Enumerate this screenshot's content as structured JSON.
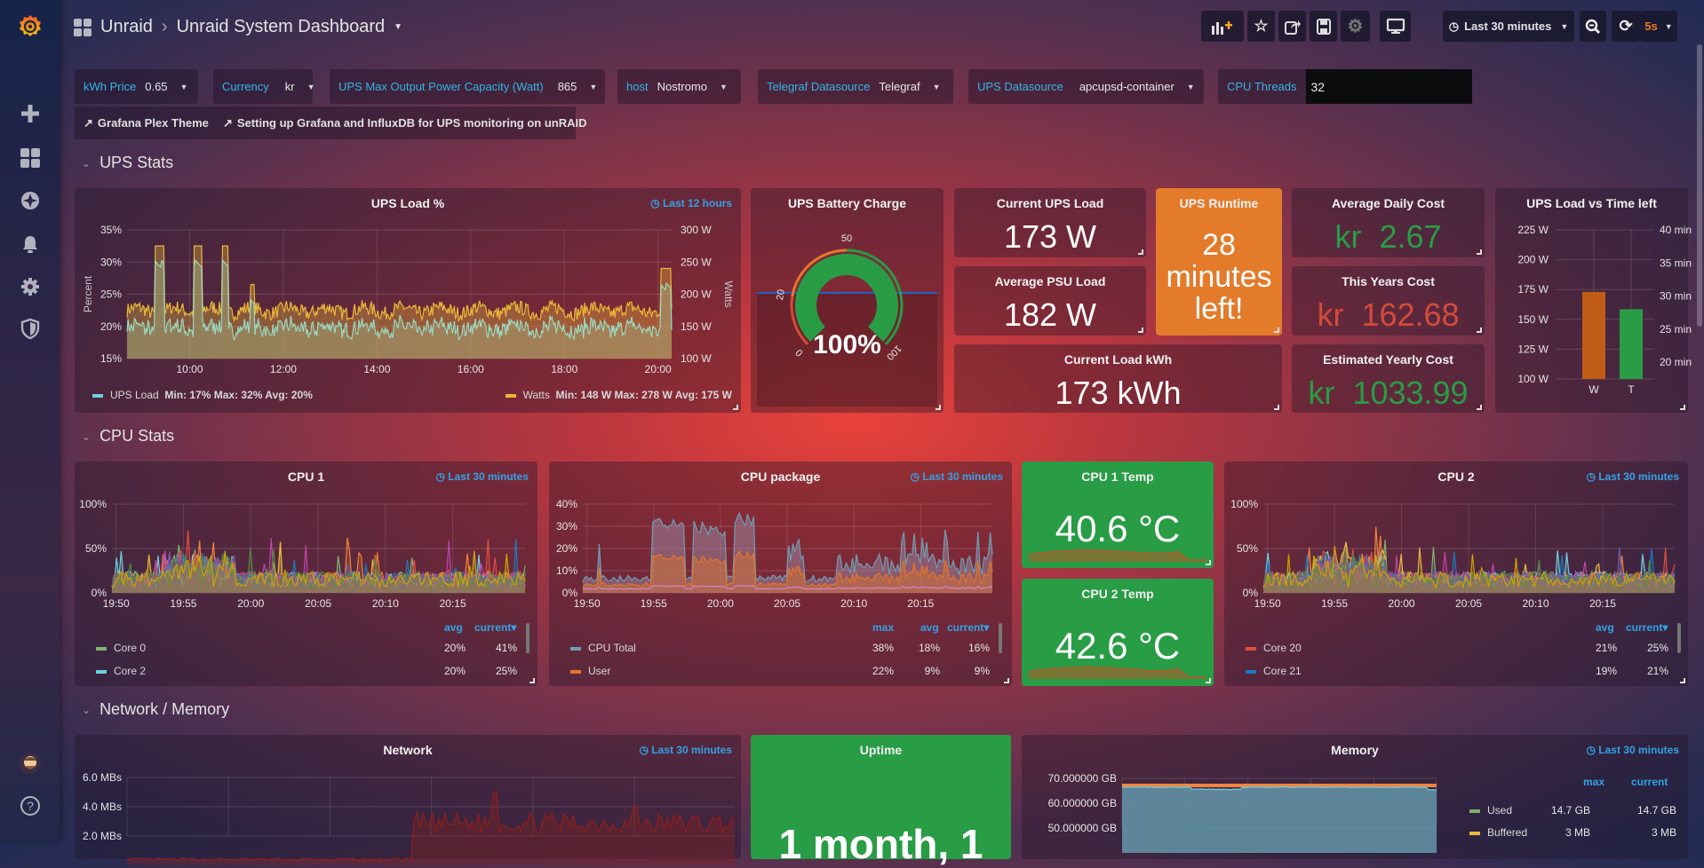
{
  "header": {
    "folder": "Unraid",
    "separator": "›",
    "title": "Unraid System Dashboard",
    "time_range": "Last 30 minutes",
    "refresh_interval": "5s"
  },
  "sidebar": {
    "items": [
      "grafana-logo",
      "create",
      "dashboards",
      "explore",
      "alerting",
      "configuration",
      "server-admin",
      "profile",
      "help"
    ]
  },
  "variables": [
    {
      "label": "kWh Price",
      "value": "0.65"
    },
    {
      "label": "Currency",
      "value": "kr"
    },
    {
      "label": "UPS Max Output Power Capacity (Watt)",
      "value": "865"
    },
    {
      "label": "host",
      "value": "Nostromo"
    },
    {
      "label": "Telegraf Datasource",
      "value": "Telegraf"
    },
    {
      "label": "UPS Datasource",
      "value": "apcupsd-container"
    },
    {
      "label": "CPU Threads",
      "value": "32"
    }
  ],
  "links": [
    "Grafana Plex Theme",
    "Setting up Grafana and InfluxDB for UPS monitoring on unRAID"
  ],
  "rows": {
    "ups": "UPS Stats",
    "cpu": "CPU Stats",
    "net": "Network / Memory"
  },
  "ups_load": {
    "title": "UPS Load %",
    "time_override": "Last 12 hours",
    "left_axis_label": "Percent",
    "right_axis_label": "Watts",
    "left_ticks": [
      "35%",
      "30%",
      "25%",
      "20%",
      "15%"
    ],
    "right_ticks": [
      "300 W",
      "250 W",
      "200 W",
      "150 W",
      "100 W"
    ],
    "x_ticks": [
      "10:00",
      "12:00",
      "14:00",
      "16:00",
      "18:00",
      "20:00"
    ],
    "legend": [
      {
        "name": "UPS Load",
        "color": "#6ed0e0",
        "stats": "Min: 17%  Max: 32%  Avg: 20%"
      },
      {
        "name": "Watts",
        "color": "#eab839",
        "stats": "Min: 148 W  Max: 278 W  Avg: 175 W"
      }
    ]
  },
  "battery": {
    "title": "UPS Battery Charge",
    "value": "100%",
    "percent": 100,
    "thresholds": [
      "0",
      "20",
      "50",
      "100"
    ],
    "colors": {
      "low": "#d44a3a",
      "mid": "#e5772c",
      "ok": "#299c46"
    }
  },
  "stats": {
    "current_load": {
      "title": "Current UPS Load",
      "value": "173 W"
    },
    "avg_psu": {
      "title": "Average PSU Load",
      "value": "182 W"
    },
    "current_kwh": {
      "title": "Current Load kWh",
      "value": "173 kWh"
    },
    "runtime": {
      "title": "UPS Runtime",
      "line1": "28",
      "line2": "minutes",
      "line3": "left!",
      "color": "#e37b2b"
    },
    "daily_cost": {
      "title": "Average Daily Cost",
      "prefix": "kr",
      "value": "2.67",
      "color": "#299c46"
    },
    "year_cost": {
      "title": "This Years Cost",
      "prefix": "kr",
      "value": "162.68",
      "color": "#d44a3a"
    },
    "yearly_cost": {
      "title": "Estimated Yearly Cost",
      "prefix": "kr",
      "value": "1033.99",
      "color": "#299c46"
    }
  },
  "load_vs_time": {
    "title": "UPS Load vs Time left",
    "left_ticks": [
      "225 W",
      "200 W",
      "175 W",
      "150 W",
      "125 W",
      "100 W"
    ],
    "right_ticks": [
      "40 min",
      "35 min",
      "30 min",
      "25 min",
      "20 min"
    ],
    "categories": [
      "W",
      "T"
    ],
    "values": {
      "W": 173,
      "T": 28
    },
    "colors": {
      "W": "#c15c17",
      "T": "#299c46"
    }
  },
  "cpu1": {
    "title": "CPU 1",
    "time_override": "Last 30 minutes",
    "y_ticks": [
      "100%",
      "50%",
      "0%"
    ],
    "x_ticks": [
      "19:50",
      "19:55",
      "20:00",
      "20:05",
      "20:10",
      "20:15"
    ],
    "legend_headers": [
      "avg",
      "current"
    ],
    "legend": [
      {
        "name": "Core 0",
        "color": "#7eb26d",
        "avg": "20%",
        "current": "41%"
      },
      {
        "name": "Core 2",
        "color": "#6ed0e0",
        "avg": "20%",
        "current": "25%"
      }
    ]
  },
  "cpu_pkg": {
    "title": "CPU package",
    "time_override": "Last 30 minutes",
    "y_ticks": [
      "40%",
      "30%",
      "20%",
      "10%",
      "0%"
    ],
    "x_ticks": [
      "19:50",
      "19:55",
      "20:00",
      "20:05",
      "20:10",
      "20:15"
    ],
    "legend_headers": [
      "max",
      "avg",
      "current"
    ],
    "legend": [
      {
        "name": "CPU Total",
        "color": "#6d9eb5",
        "max": "38%",
        "avg": "18%",
        "current": "16%"
      },
      {
        "name": "User",
        "color": "#e0752d",
        "max": "22%",
        "avg": "9%",
        "current": "9%"
      }
    ]
  },
  "cpu1_temp": {
    "title": "CPU 1 Temp",
    "value": "40.6 °C",
    "color": "#299c46"
  },
  "cpu2_temp": {
    "title": "CPU 2 Temp",
    "value": "42.6 °C",
    "color": "#299c46"
  },
  "cpu2": {
    "title": "CPU 2",
    "time_override": "Last 30 minutes",
    "y_ticks": [
      "100%",
      "50%",
      "0%"
    ],
    "x_ticks": [
      "19:50",
      "19:55",
      "20:00",
      "20:05",
      "20:10",
      "20:15"
    ],
    "legend_headers": [
      "avg",
      "current"
    ],
    "legend": [
      {
        "name": "Core 20",
        "color": "#e24d42",
        "avg": "21%",
        "current": "25%"
      },
      {
        "name": "Core 21",
        "color": "#1f78c1",
        "avg": "19%",
        "current": "21%"
      }
    ]
  },
  "network": {
    "title": "Network",
    "time_override": "Last 30 minutes",
    "y_ticks": [
      "6.0 MBs",
      "4.0 MBs",
      "2.0 MBs"
    ]
  },
  "uptime": {
    "title": "Uptime",
    "value": "1 month, 1"
  },
  "memory": {
    "title": "Memory",
    "time_override": "Last 30 minutes",
    "y_ticks": [
      "70.000000 GB",
      "60.000000 GB",
      "50.000000 GB"
    ],
    "legend_headers": [
      "max",
      "current"
    ],
    "legend": [
      {
        "name": "Used",
        "color": "#7eb26d",
        "max": "14.7 GB",
        "current": "14.7 GB"
      },
      {
        "name": "Buffered",
        "color": "#eab839",
        "max": "3 MB",
        "current": "3 MB"
      }
    ]
  }
}
